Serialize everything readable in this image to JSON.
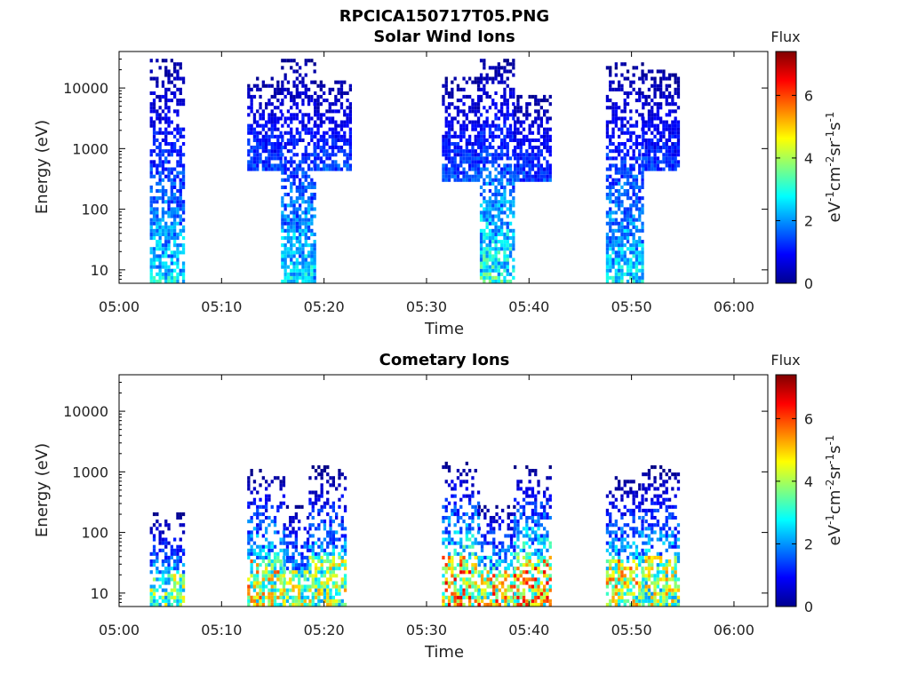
{
  "figure": {
    "title": "RPCICA150717T05.PNG"
  },
  "chart_data": [
    {
      "type": "heatmap",
      "title": "Solar Wind Ions",
      "xlabel": "Time",
      "ylabel": "Energy (eV)",
      "y_scale": "log",
      "ylim": [
        6,
        40000
      ],
      "x_ticks": [
        "05:00",
        "05:10",
        "05:20",
        "05:30",
        "05:40",
        "05:50",
        "06:00"
      ],
      "y_ticks": [
        "10",
        "100",
        "1000",
        "10000"
      ],
      "colorbar": {
        "label_top": "Flux",
        "unit": "eV-1cm-2sr-1s-1",
        "range": [
          0,
          7.4
        ],
        "ticks": [
          "0",
          "2",
          "4",
          "6"
        ],
        "colormap": "jet"
      },
      "clusters": [
        {
          "t_start": 3.0,
          "t_end": 6.2,
          "e_low": 6,
          "e_high": 30000,
          "peak": 3.2
        },
        {
          "t_start": 12.5,
          "t_end": 15.8,
          "e_low": 400,
          "e_high": 15000,
          "peak": 1.8
        },
        {
          "t_start": 15.8,
          "t_end": 19.0,
          "e_low": 6,
          "e_high": 30000,
          "peak": 3.2
        },
        {
          "t_start": 19.0,
          "t_end": 22.5,
          "e_low": 400,
          "e_high": 15000,
          "peak": 1.8
        },
        {
          "t_start": 31.5,
          "t_end": 35.2,
          "e_low": 300,
          "e_high": 15000,
          "peak": 1.8
        },
        {
          "t_start": 35.2,
          "t_end": 38.5,
          "e_low": 6,
          "e_high": 30000,
          "peak": 3.8
        },
        {
          "t_start": 38.5,
          "t_end": 42.0,
          "e_low": 300,
          "e_high": 8000,
          "peak": 1.6
        },
        {
          "t_start": 47.5,
          "t_end": 51.0,
          "e_low": 6,
          "e_high": 25000,
          "peak": 3.2
        },
        {
          "t_start": 51.0,
          "t_end": 54.5,
          "e_low": 400,
          "e_high": 20000,
          "peak": 1.6
        }
      ]
    },
    {
      "type": "heatmap",
      "title": "Cometary Ions",
      "xlabel": "Time",
      "ylabel": "Energy (eV)",
      "y_scale": "log",
      "ylim": [
        6,
        40000
      ],
      "x_ticks": [
        "05:00",
        "05:10",
        "05:20",
        "05:30",
        "05:40",
        "05:50",
        "06:00"
      ],
      "y_ticks": [
        "10",
        "100",
        "1000",
        "10000"
      ],
      "colorbar": {
        "label_top": "Flux",
        "unit": "eV-1cm-2sr-1s-1",
        "range": [
          0,
          7.4
        ],
        "ticks": [
          "0",
          "2",
          "4",
          "6"
        ],
        "colormap": "jet"
      },
      "clusters": [
        {
          "t_start": 3.0,
          "t_end": 6.2,
          "e_low": 6,
          "e_high": 220,
          "peak": 5.0
        },
        {
          "t_start": 12.5,
          "t_end": 16.0,
          "e_low": 6,
          "e_high": 1100,
          "peak": 6.0
        },
        {
          "t_start": 16.0,
          "t_end": 18.5,
          "e_low": 6,
          "e_high": 300,
          "peak": 5.2
        },
        {
          "t_start": 18.5,
          "t_end": 22.0,
          "e_low": 6,
          "e_high": 1300,
          "peak": 5.5
        },
        {
          "t_start": 31.5,
          "t_end": 35.0,
          "e_low": 6,
          "e_high": 1500,
          "peak": 6.8
        },
        {
          "t_start": 35.0,
          "t_end": 38.5,
          "e_low": 6,
          "e_high": 300,
          "peak": 6.5
        },
        {
          "t_start": 38.5,
          "t_end": 42.0,
          "e_low": 6,
          "e_high": 1300,
          "peak": 6.8
        },
        {
          "t_start": 47.5,
          "t_end": 51.0,
          "e_low": 6,
          "e_high": 900,
          "peak": 6.0
        },
        {
          "t_start": 51.0,
          "t_end": 54.5,
          "e_low": 6,
          "e_high": 1300,
          "peak": 5.5
        }
      ]
    }
  ]
}
